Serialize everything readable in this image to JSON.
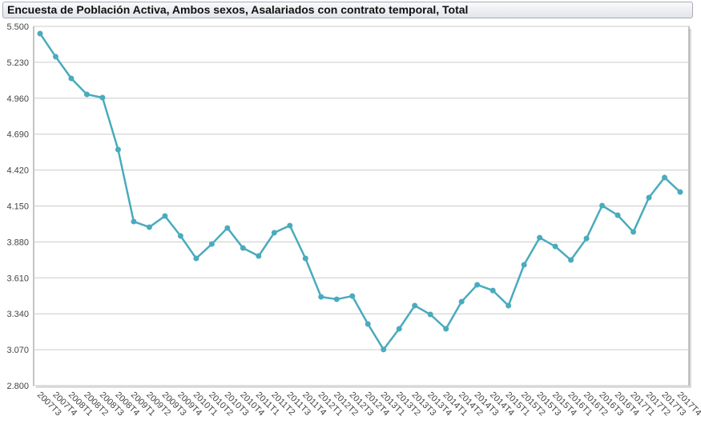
{
  "chart_data": {
    "type": "line",
    "title": "Encuesta de Población Activa, Ambos sexos, Asalariados con contrato temporal, Total",
    "categories": [
      "2007T3",
      "2007T4",
      "2008T1",
      "2008T2",
      "2008T3",
      "2008T4",
      "2009T1",
      "2009T2",
      "2009T3",
      "2009T4",
      "2010T1",
      "2010T2",
      "2010T3",
      "2010T4",
      "2011T1",
      "2011T2",
      "2011T3",
      "2011T4",
      "2012T1",
      "2012T2",
      "2012T3",
      "2012T4",
      "2013T1",
      "2013T2",
      "2013T3",
      "2013T4",
      "2014T1",
      "2014T2",
      "2014T3",
      "2014T4",
      "2015T1",
      "2015T2",
      "2015T3",
      "2015T4",
      "2016T1",
      "2016T2",
      "2016T3",
      "2016T4",
      "2017T1",
      "2017T2",
      "2017T3",
      "2017T4"
    ],
    "series": [
      {
        "color": "#4aabbd",
        "values": [
          5446,
          5272,
          5109,
          4989,
          4965,
          4574,
          4033,
          3991,
          4075,
          3925,
          3756,
          3864,
          3985,
          3834,
          3774,
          3949,
          4003,
          3756,
          3467,
          3449,
          3473,
          3263,
          3071,
          3227,
          3401,
          3335,
          3227,
          3431,
          3558,
          3515,
          3401,
          3708,
          3912,
          3846,
          3744,
          3906,
          4153,
          4081,
          3955,
          4213,
          4364,
          4255
        ]
      }
    ],
    "ylim": [
      2800,
      5500
    ],
    "yticks": [
      {
        "value": 2800,
        "label": "2.800"
      },
      {
        "value": 3070,
        "label": "3.070"
      },
      {
        "value": 3340,
        "label": "3.340"
      },
      {
        "value": 3610,
        "label": "3.610"
      },
      {
        "value": 3880,
        "label": "3.880"
      },
      {
        "value": 4150,
        "label": "4.150"
      },
      {
        "value": 4420,
        "label": "4.420"
      },
      {
        "value": 4690,
        "label": "4.690"
      },
      {
        "value": 4960,
        "label": "4.960"
      },
      {
        "value": 5230,
        "label": "5.230"
      },
      {
        "value": 5500,
        "label": "5.500"
      }
    ],
    "grid": true
  }
}
